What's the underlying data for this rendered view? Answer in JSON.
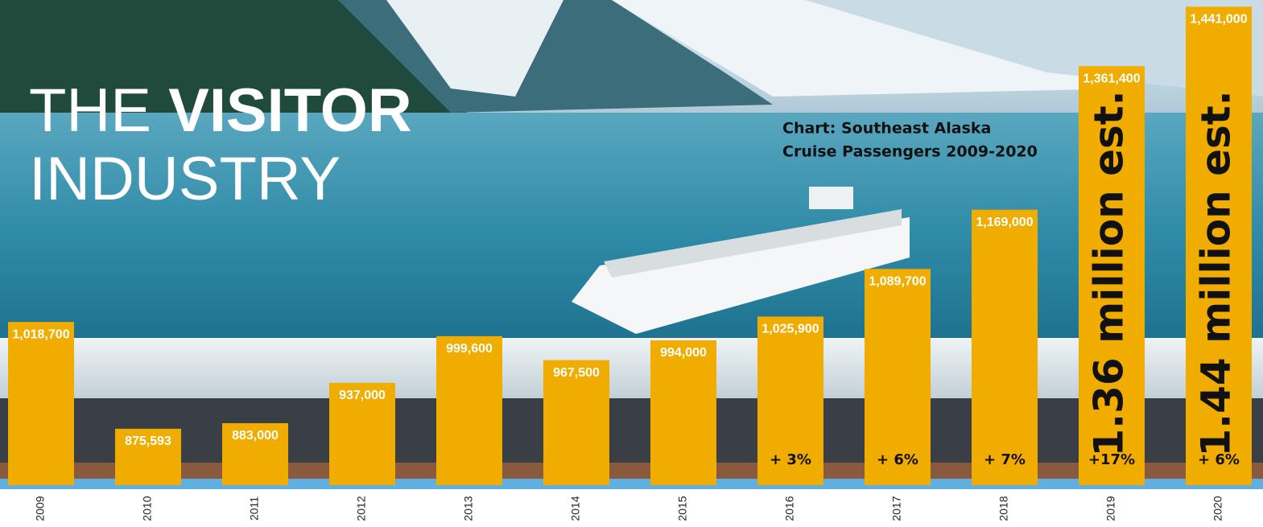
{
  "chart_data": {
    "type": "bar",
    "title": [
      "THE",
      "VISITOR",
      "INDUSTRY"
    ],
    "subtitle": [
      "Chart: Southeast Alaska",
      "Cruise Passengers 2009-2020"
    ],
    "categories": [
      "2009",
      "2010",
      "2011",
      "2012",
      "2013",
      "2014",
      "2015",
      "2016",
      "2017",
      "2018",
      "2019",
      "2020"
    ],
    "values": [
      1018700,
      875593,
      883000,
      937000,
      999600,
      967500,
      994000,
      1025900,
      1089700,
      1169000,
      1361400,
      1441000
    ],
    "value_labels": [
      "1,018,700",
      "875,593",
      "883,000",
      "937,000",
      "999,600",
      "967,500",
      "994,000",
      "1,025,900",
      "1,089,700",
      "1,169,000",
      "1,361,400",
      "1,441,000"
    ],
    "change_labels": [
      null,
      null,
      null,
      null,
      null,
      null,
      null,
      "+ 3%",
      "+ 6%",
      "+ 7%",
      "+17%",
      "+ 6%"
    ],
    "estimate_labels": [
      null,
      null,
      null,
      null,
      null,
      null,
      null,
      null,
      null,
      null,
      "1.36 million est.",
      "1.44 million est."
    ],
    "color": "#f0ad00",
    "ylim": [
      800000,
      1450000
    ]
  }
}
